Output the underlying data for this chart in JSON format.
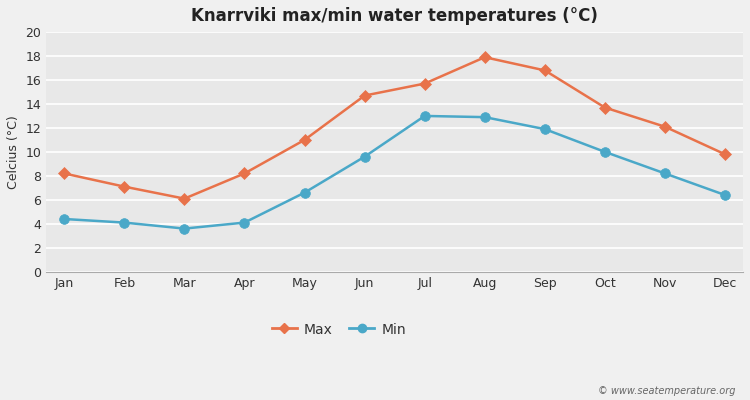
{
  "title": "Knarrviki max/min water temperatures (°C)",
  "ylabel": "Celcius (°C)",
  "months": [
    "Jan",
    "Feb",
    "Mar",
    "Apr",
    "May",
    "Jun",
    "Jul",
    "Aug",
    "Sep",
    "Oct",
    "Nov",
    "Dec"
  ],
  "max_values": [
    8.2,
    7.1,
    6.1,
    8.2,
    11.0,
    14.7,
    15.7,
    17.9,
    16.8,
    13.7,
    12.1,
    9.8
  ],
  "min_values": [
    4.4,
    4.1,
    3.6,
    4.1,
    6.6,
    9.6,
    13.0,
    12.9,
    11.9,
    10.0,
    8.2,
    6.4
  ],
  "max_color": "#e8724a",
  "min_color": "#4aa8c8",
  "outer_bg_color": "#f0f0f0",
  "plot_bg_color": "#e8e8e8",
  "grid_color": "#ffffff",
  "ylim": [
    0,
    20
  ],
  "yticks": [
    0,
    2,
    4,
    6,
    8,
    10,
    12,
    14,
    16,
    18,
    20
  ],
  "legend_labels": [
    "Max",
    "Min"
  ],
  "watermark": "© www.seatemperature.org",
  "marker_size": 6,
  "line_width": 1.8,
  "title_fontsize": 12,
  "axis_fontsize": 9,
  "tick_fontsize": 9
}
